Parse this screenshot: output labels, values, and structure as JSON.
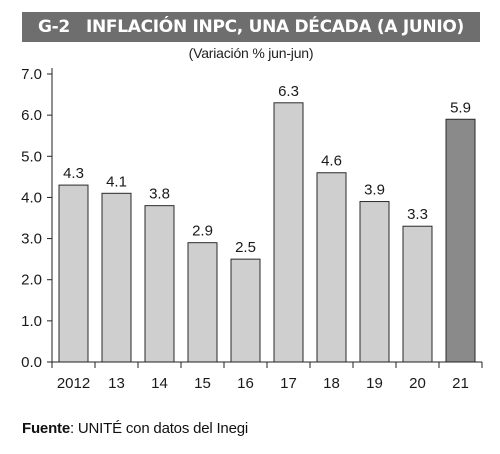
{
  "header": {
    "code": "G-2",
    "title": "INFLACIÓN INPC, UNA DÉCADA (A JUNIO)",
    "subtitle": "(Variación % jun-jun)"
  },
  "footer": {
    "source_label": "Fuente",
    "source_text": ": UNITÉ con datos del Inegi"
  },
  "colors": {
    "bar_normal": "#cfcfcf",
    "bar_highlight": "#8a8a8a",
    "bar_stroke": "#2a2a2a",
    "title_bg": "#6e6e6e"
  },
  "chart_data": {
    "type": "bar",
    "categories": [
      "2012",
      "13",
      "14",
      "15",
      "16",
      "17",
      "18",
      "19",
      "20",
      "21"
    ],
    "values": [
      4.3,
      4.1,
      3.8,
      2.9,
      2.5,
      6.3,
      4.6,
      3.9,
      3.3,
      5.9
    ],
    "data_labels": [
      "4.3",
      "4.1",
      "3.8",
      "2.9",
      "2.5",
      "6.3",
      "4.6",
      "3.9",
      "3.3",
      "5.9"
    ],
    "highlight_index": 9,
    "ylim": [
      0,
      7
    ],
    "yticks": [
      0,
      1,
      2,
      3,
      4,
      5,
      6,
      7
    ],
    "ytick_labels": [
      "0.0",
      "1.0",
      "2.0",
      "3.0",
      "4.0",
      "5.0",
      "6.0",
      "7.0"
    ],
    "grid": false,
    "legend": "none"
  }
}
